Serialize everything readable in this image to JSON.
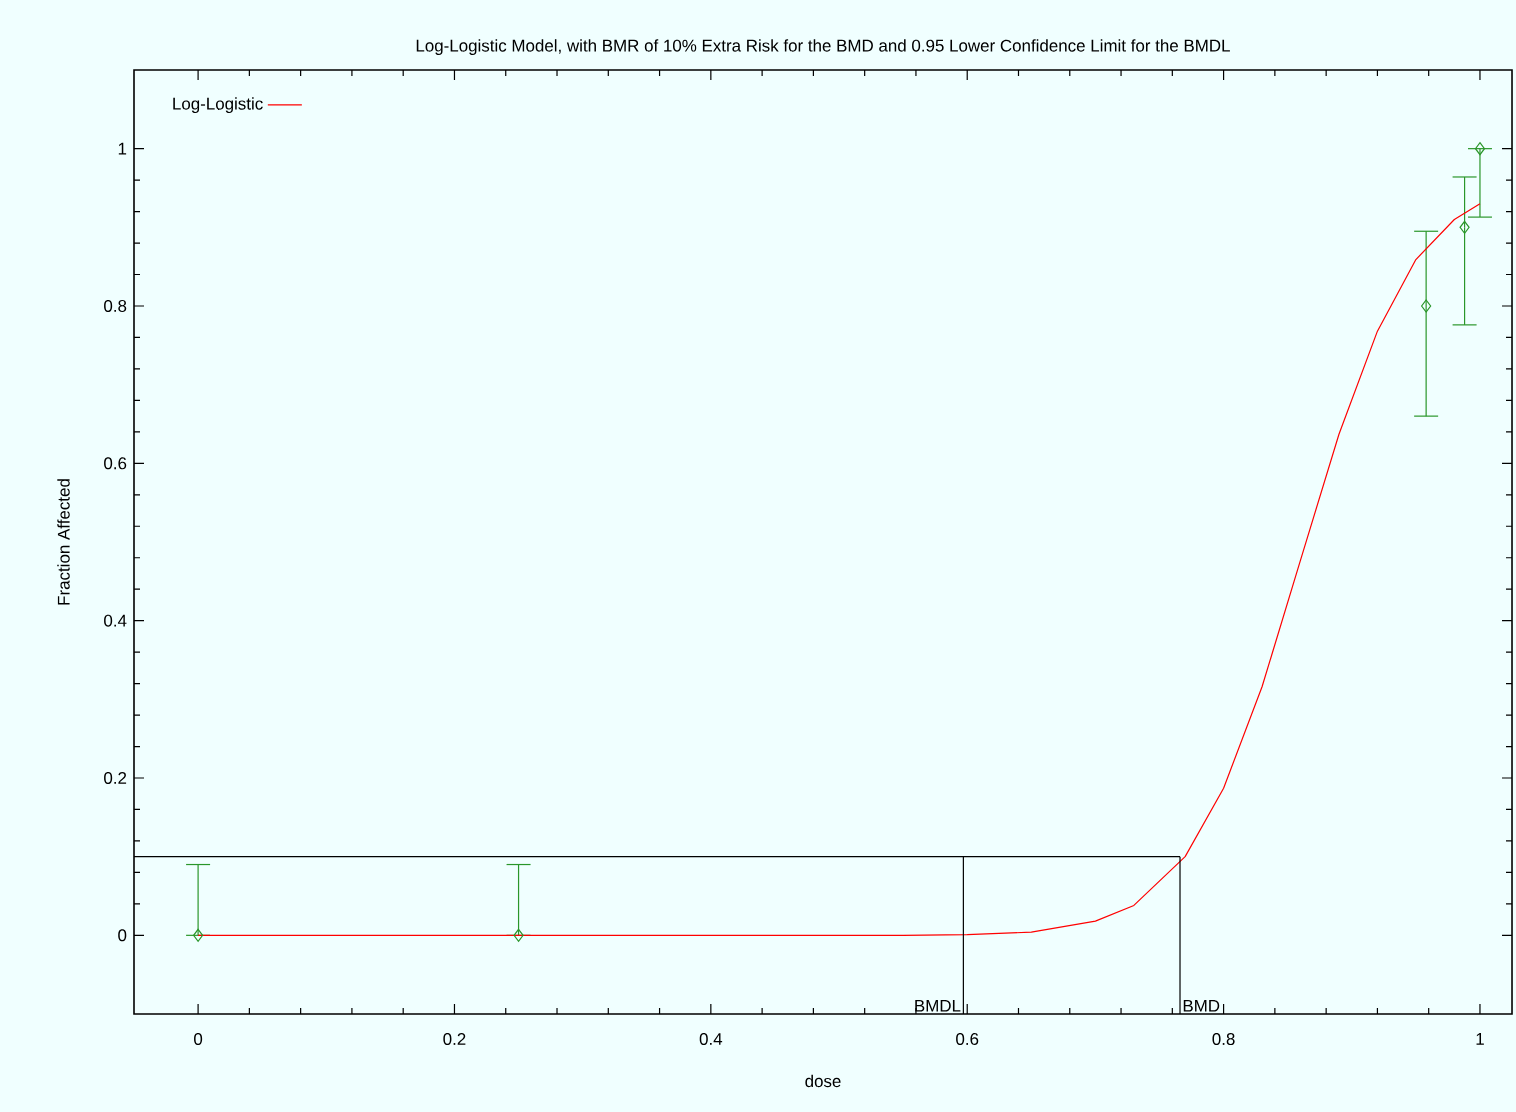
{
  "chart_data": {
    "type": "scatter",
    "title": "Log-Logistic Model, with BMR of 10% Extra Risk for the BMD and 0.95 Lower Confidence Limit for the BMDL",
    "xlabel": "dose",
    "ylabel": "Fraction Affected",
    "xlim": [
      -0.05,
      1.025
    ],
    "ylim": [
      -0.1,
      1.1
    ],
    "xticks": [
      0,
      0.2,
      0.4,
      0.6,
      0.8,
      1
    ],
    "yticks": [
      0,
      0.2,
      0.4,
      0.6,
      0.8,
      1
    ],
    "grid": false,
    "legend": "top left",
    "marker": "diamond",
    "series": [
      {
        "color": "#2a962a",
        "x": [
          0,
          0.25,
          0.958,
          0.988,
          1.0
        ],
        "values": [
          0,
          0,
          0.8,
          0.9,
          1.0
        ],
        "errors": [
          [
            0,
            0.09
          ],
          [
            0,
            0.09
          ],
          [
            0.66,
            0.895
          ],
          [
            0.776,
            0.964
          ],
          [
            0.913,
            1.0
          ]
        ]
      },
      {
        "type": "line",
        "name": "Log-Logistic",
        "color": "#ff0000",
        "marker": "none",
        "line_style": "solid",
        "x": [
          0,
          0.1,
          0.2,
          0.3,
          0.4,
          0.5,
          0.55,
          0.6,
          0.65,
          0.7,
          0.73,
          0.77,
          0.8,
          0.83,
          0.86,
          0.89,
          0.92,
          0.95,
          0.98,
          1.0
        ],
        "values": [
          0,
          0,
          0,
          0,
          0,
          0,
          0,
          0.001,
          0.004,
          0.018,
          0.038,
          0.1,
          0.187,
          0.316,
          0.477,
          0.637,
          0.768,
          0.859,
          0.91,
          0.93
        ]
      }
    ],
    "ref_lines": [
      {
        "axis": "y",
        "value": 0.1,
        "color": "#000000"
      },
      {
        "axis": "x",
        "value": 0.597,
        "label": "BMDL",
        "color": "#000000"
      },
      {
        "axis": "x",
        "value": 0.766,
        "label": "BMD",
        "color": "#000000"
      }
    ]
  }
}
